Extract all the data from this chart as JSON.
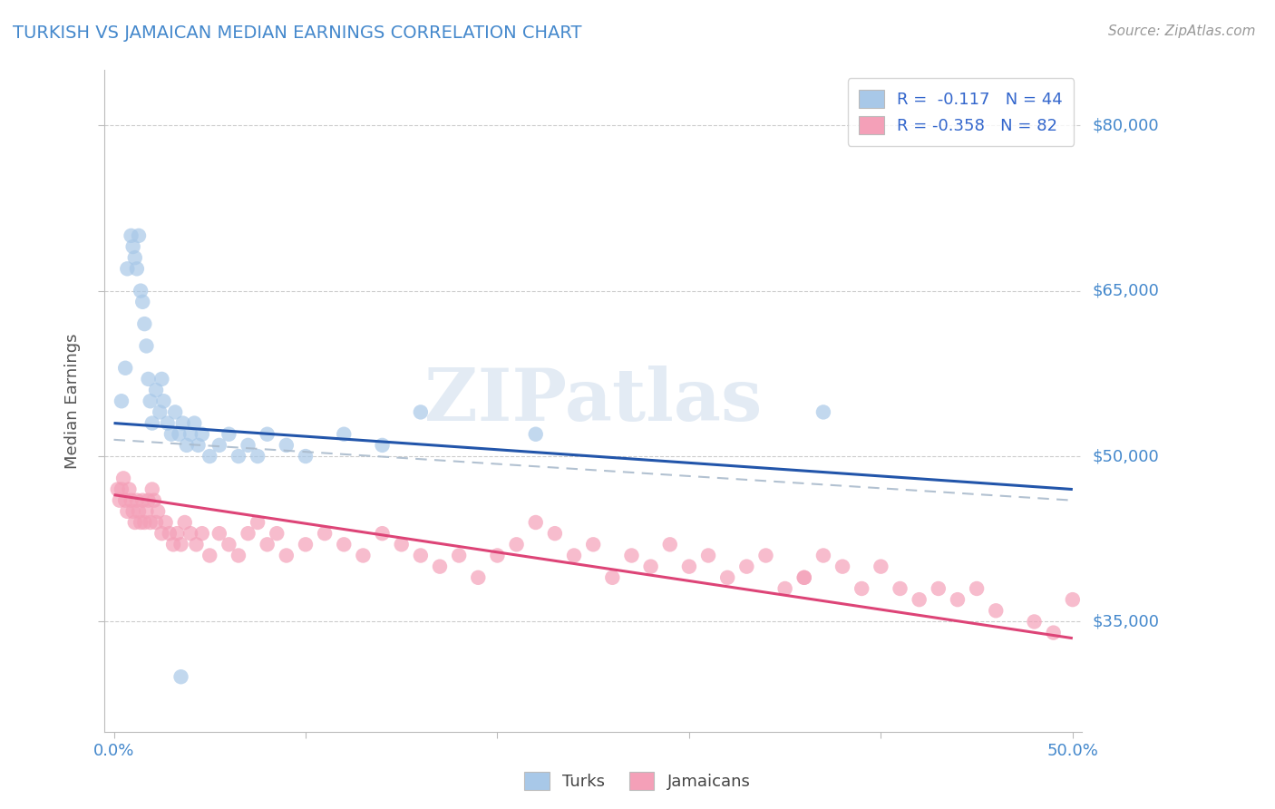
{
  "title": "TURKISH VS JAMAICAN MEDIAN EARNINGS CORRELATION CHART",
  "source_text": "Source: ZipAtlas.com",
  "ylabel": "Median Earnings",
  "xlim": [
    -0.005,
    0.505
  ],
  "ylim": [
    25000,
    85000
  ],
  "ytick_vals": [
    35000,
    50000,
    65000,
    80000
  ],
  "ytick_labels": [
    "$35,000",
    "$50,000",
    "$65,000",
    "$80,000"
  ],
  "xtick_vals": [
    0.0,
    0.1,
    0.2,
    0.3,
    0.4,
    0.5
  ],
  "xtick_labels": [
    "0.0%",
    "",
    "",
    "",
    "",
    "50.0%"
  ],
  "watermark": "ZIPatlas",
  "legend_line1": "R =  -0.117   N = 44",
  "legend_line2": "R = -0.358   N = 82",
  "turks_color": "#a8c8e8",
  "jamaicans_color": "#f4a0b8",
  "turks_line_color": "#2255aa",
  "jamaicans_line_color": "#dd4477",
  "dash_line_color": "#aabbcc",
  "background_color": "#ffffff",
  "blue_line_y0": 53000,
  "blue_line_y1": 47000,
  "pink_line_y0": 46500,
  "pink_line_y1": 33500,
  "dash_line_y0": 51500,
  "dash_line_y1": 46000,
  "turks_x": [
    0.004,
    0.006,
    0.007,
    0.009,
    0.01,
    0.011,
    0.012,
    0.013,
    0.014,
    0.015,
    0.016,
    0.017,
    0.018,
    0.019,
    0.02,
    0.022,
    0.024,
    0.025,
    0.026,
    0.028,
    0.03,
    0.032,
    0.034,
    0.036,
    0.038,
    0.04,
    0.042,
    0.044,
    0.046,
    0.05,
    0.055,
    0.06,
    0.065,
    0.07,
    0.075,
    0.08,
    0.09,
    0.1,
    0.12,
    0.14,
    0.16,
    0.22,
    0.37,
    0.035
  ],
  "turks_y": [
    55000,
    58000,
    67000,
    70000,
    69000,
    68000,
    67000,
    70000,
    65000,
    64000,
    62000,
    60000,
    57000,
    55000,
    53000,
    56000,
    54000,
    57000,
    55000,
    53000,
    52000,
    54000,
    52000,
    53000,
    51000,
    52000,
    53000,
    51000,
    52000,
    50000,
    51000,
    52000,
    50000,
    51000,
    50000,
    52000,
    51000,
    50000,
    52000,
    51000,
    54000,
    52000,
    54000,
    30000
  ],
  "jamaicans_x": [
    0.002,
    0.003,
    0.004,
    0.005,
    0.006,
    0.007,
    0.008,
    0.009,
    0.01,
    0.011,
    0.012,
    0.013,
    0.014,
    0.015,
    0.016,
    0.017,
    0.018,
    0.019,
    0.02,
    0.021,
    0.022,
    0.023,
    0.025,
    0.027,
    0.029,
    0.031,
    0.033,
    0.035,
    0.037,
    0.04,
    0.043,
    0.046,
    0.05,
    0.055,
    0.06,
    0.065,
    0.07,
    0.075,
    0.08,
    0.085,
    0.09,
    0.1,
    0.11,
    0.12,
    0.13,
    0.14,
    0.15,
    0.16,
    0.17,
    0.18,
    0.19,
    0.2,
    0.21,
    0.22,
    0.23,
    0.24,
    0.25,
    0.26,
    0.27,
    0.28,
    0.29,
    0.3,
    0.31,
    0.32,
    0.33,
    0.34,
    0.35,
    0.36,
    0.37,
    0.38,
    0.39,
    0.4,
    0.41,
    0.42,
    0.43,
    0.44,
    0.45,
    0.46,
    0.48,
    0.49,
    0.5,
    0.36
  ],
  "jamaicans_y": [
    47000,
    46000,
    47000,
    48000,
    46000,
    45000,
    47000,
    46000,
    45000,
    44000,
    46000,
    45000,
    44000,
    46000,
    44000,
    45000,
    46000,
    44000,
    47000,
    46000,
    44000,
    45000,
    43000,
    44000,
    43000,
    42000,
    43000,
    42000,
    44000,
    43000,
    42000,
    43000,
    41000,
    43000,
    42000,
    41000,
    43000,
    44000,
    42000,
    43000,
    41000,
    42000,
    43000,
    42000,
    41000,
    43000,
    42000,
    41000,
    40000,
    41000,
    39000,
    41000,
    42000,
    44000,
    43000,
    41000,
    42000,
    39000,
    41000,
    40000,
    42000,
    40000,
    41000,
    39000,
    40000,
    41000,
    38000,
    39000,
    41000,
    40000,
    38000,
    40000,
    38000,
    37000,
    38000,
    37000,
    38000,
    36000,
    35000,
    34000,
    37000,
    39000
  ]
}
